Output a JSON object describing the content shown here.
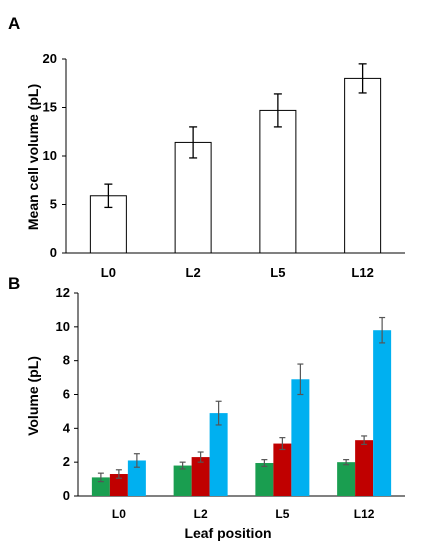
{
  "panels": {
    "a": {
      "letter": "A"
    },
    "b": {
      "letter": "B"
    }
  },
  "colors": {
    "axis": "#000000",
    "errorbar_a": "#000000",
    "errorbar_b": "#555555",
    "bar_a_fill": "#ffffff",
    "bar_a_stroke": "#000000"
  },
  "chart_data": [
    {
      "type": "bar",
      "panel": "A",
      "title": "",
      "xlabel": "",
      "ylabel": "Mean cell volume (pL)",
      "categories": [
        "L0",
        "L2",
        "L5",
        "L12"
      ],
      "values": [
        5.9,
        11.4,
        14.7,
        18.0
      ],
      "errors": [
        1.2,
        1.6,
        1.7,
        1.5
      ],
      "ylim": [
        0,
        20
      ],
      "yticks": [
        "0",
        "5",
        "10",
        "15",
        "20"
      ],
      "grid": false
    },
    {
      "type": "bar",
      "panel": "B",
      "title": "",
      "xlabel": "Leaf position",
      "ylabel": "Volume (pL)",
      "categories": [
        "L0",
        "L2",
        "L5",
        "L12"
      ],
      "series": [
        {
          "color": "#1a9e50",
          "values": [
            1.1,
            1.8,
            1.95,
            2.0
          ],
          "errors": [
            0.25,
            0.2,
            0.2,
            0.15
          ]
        },
        {
          "color": "#c00000",
          "values": [
            1.3,
            2.3,
            3.1,
            3.3
          ],
          "errors": [
            0.25,
            0.3,
            0.35,
            0.25
          ]
        },
        {
          "color": "#00b0f0",
          "values": [
            2.1,
            4.9,
            6.9,
            9.8
          ],
          "errors": [
            0.4,
            0.7,
            0.9,
            0.75
          ]
        }
      ],
      "ylim": [
        0,
        12
      ],
      "yticks": [
        "0",
        "2",
        "4",
        "6",
        "8",
        "10",
        "12"
      ],
      "grid": false
    }
  ]
}
